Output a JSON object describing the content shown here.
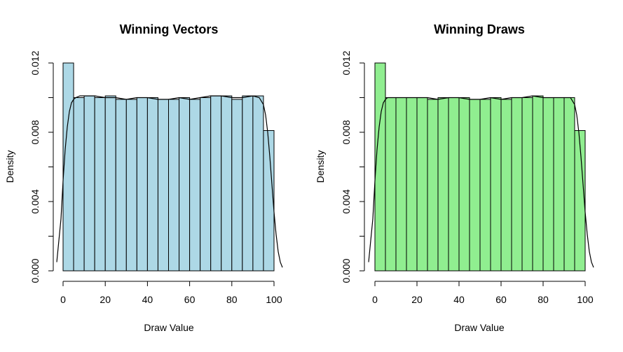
{
  "chart_data": [
    {
      "type": "bar",
      "title": "Winning Vectors",
      "xlabel": "Draw Value",
      "ylabel": "Density",
      "xlim": [
        0,
        100
      ],
      "ylim": [
        0,
        0.012
      ],
      "xticks": [
        0,
        20,
        40,
        60,
        80,
        100
      ],
      "xtick_labels": [
        "0",
        "20",
        "40",
        "60",
        "80",
        "100"
      ],
      "yticks": [
        0,
        0.004,
        0.008,
        0.012
      ],
      "ytick_labels": [
        "0.000",
        "0.004",
        "0.008",
        "0.012"
      ],
      "grid": false,
      "bar_color": "#ADD8E6",
      "bins": [
        {
          "start": 0,
          "end": 5,
          "density": 0.012
        },
        {
          "start": 5,
          "end": 10,
          "density": 0.01
        },
        {
          "start": 10,
          "end": 15,
          "density": 0.0101
        },
        {
          "start": 15,
          "end": 20,
          "density": 0.01
        },
        {
          "start": 20,
          "end": 25,
          "density": 0.0101
        },
        {
          "start": 25,
          "end": 30,
          "density": 0.0099
        },
        {
          "start": 30,
          "end": 35,
          "density": 0.0099
        },
        {
          "start": 35,
          "end": 40,
          "density": 0.01
        },
        {
          "start": 40,
          "end": 45,
          "density": 0.01
        },
        {
          "start": 45,
          "end": 50,
          "density": 0.0099
        },
        {
          "start": 50,
          "end": 55,
          "density": 0.0099
        },
        {
          "start": 55,
          "end": 60,
          "density": 0.01
        },
        {
          "start": 60,
          "end": 65,
          "density": 0.0099
        },
        {
          "start": 65,
          "end": 70,
          "density": 0.01
        },
        {
          "start": 70,
          "end": 75,
          "density": 0.0101
        },
        {
          "start": 75,
          "end": 80,
          "density": 0.0101
        },
        {
          "start": 80,
          "end": 85,
          "density": 0.0099
        },
        {
          "start": 85,
          "end": 90,
          "density": 0.0101
        },
        {
          "start": 90,
          "end": 95,
          "density": 0.0101
        },
        {
          "start": 95,
          "end": 100,
          "density": 0.0081
        }
      ],
      "density_curve": {
        "x": [
          -3,
          -1,
          0,
          1,
          2,
          3,
          4,
          5,
          6,
          8,
          10,
          15,
          20,
          25,
          30,
          35,
          40,
          45,
          50,
          55,
          60,
          65,
          70,
          75,
          80,
          85,
          90,
          93,
          95,
          96,
          97,
          98,
          99,
          100,
          101,
          102,
          103,
          104
        ],
        "y": [
          0.0005,
          0.003,
          0.0052,
          0.007,
          0.0083,
          0.0092,
          0.0097,
          0.0099,
          0.01,
          0.0101,
          0.0101,
          0.0101,
          0.01,
          0.01,
          0.0099,
          0.01,
          0.01,
          0.0099,
          0.0099,
          0.01,
          0.0099,
          0.01,
          0.0101,
          0.0101,
          0.01,
          0.01,
          0.0101,
          0.01,
          0.0096,
          0.009,
          0.008,
          0.0066,
          0.005,
          0.0034,
          0.0021,
          0.0011,
          0.0005,
          0.0002
        ]
      }
    },
    {
      "type": "bar",
      "title": "Winning Draws",
      "xlabel": "Draw Value",
      "ylabel": "Density",
      "xlim": [
        0,
        100
      ],
      "ylim": [
        0,
        0.012
      ],
      "xticks": [
        0,
        20,
        40,
        60,
        80,
        100
      ],
      "xtick_labels": [
        "0",
        "20",
        "40",
        "60",
        "80",
        "100"
      ],
      "yticks": [
        0,
        0.004,
        0.008,
        0.012
      ],
      "ytick_labels": [
        "0.000",
        "0.004",
        "0.008",
        "0.012"
      ],
      "grid": false,
      "bar_color": "#90EE90",
      "bins": [
        {
          "start": 0,
          "end": 5,
          "density": 0.012
        },
        {
          "start": 5,
          "end": 10,
          "density": 0.01
        },
        {
          "start": 10,
          "end": 15,
          "density": 0.01
        },
        {
          "start": 15,
          "end": 20,
          "density": 0.01
        },
        {
          "start": 20,
          "end": 25,
          "density": 0.01
        },
        {
          "start": 25,
          "end": 30,
          "density": 0.0099
        },
        {
          "start": 30,
          "end": 35,
          "density": 0.01
        },
        {
          "start": 35,
          "end": 40,
          "density": 0.01
        },
        {
          "start": 40,
          "end": 45,
          "density": 0.01
        },
        {
          "start": 45,
          "end": 50,
          "density": 0.0099
        },
        {
          "start": 50,
          "end": 55,
          "density": 0.0099
        },
        {
          "start": 55,
          "end": 60,
          "density": 0.01
        },
        {
          "start": 60,
          "end": 65,
          "density": 0.0099
        },
        {
          "start": 65,
          "end": 70,
          "density": 0.01
        },
        {
          "start": 70,
          "end": 75,
          "density": 0.01
        },
        {
          "start": 75,
          "end": 80,
          "density": 0.0101
        },
        {
          "start": 80,
          "end": 85,
          "density": 0.01
        },
        {
          "start": 85,
          "end": 90,
          "density": 0.01
        },
        {
          "start": 90,
          "end": 95,
          "density": 0.01
        },
        {
          "start": 95,
          "end": 100,
          "density": 0.0081
        }
      ],
      "density_curve": {
        "x": [
          -3,
          -1,
          0,
          1,
          2,
          3,
          4,
          5,
          6,
          8,
          10,
          15,
          20,
          25,
          30,
          35,
          40,
          45,
          50,
          55,
          60,
          65,
          70,
          75,
          80,
          85,
          90,
          93,
          95,
          96,
          97,
          98,
          99,
          100,
          101,
          102,
          103,
          104
        ],
        "y": [
          0.0005,
          0.003,
          0.0052,
          0.007,
          0.0083,
          0.0092,
          0.0097,
          0.0099,
          0.01,
          0.01,
          0.01,
          0.01,
          0.01,
          0.01,
          0.0099,
          0.01,
          0.01,
          0.0099,
          0.0099,
          0.01,
          0.0099,
          0.01,
          0.01,
          0.0101,
          0.01,
          0.01,
          0.01,
          0.01,
          0.0096,
          0.009,
          0.008,
          0.0066,
          0.005,
          0.0034,
          0.0021,
          0.0011,
          0.0005,
          0.0002
        ]
      }
    }
  ]
}
